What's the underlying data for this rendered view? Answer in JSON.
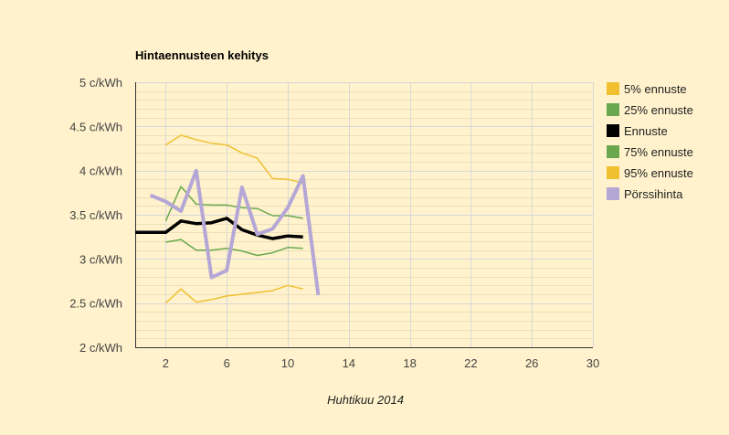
{
  "chart_data": {
    "type": "line",
    "title": "Hintaennusteen kehitys",
    "xlabel": "Huhtikuu 2014",
    "ylabel": "",
    "xlim": [
      0,
      30
    ],
    "ylim": [
      2,
      5
    ],
    "x_ticks": [
      2,
      6,
      10,
      14,
      18,
      22,
      26,
      30
    ],
    "y_ticks": [
      {
        "value": 2,
        "label": "2 c/kWh"
      },
      {
        "value": 2.5,
        "label": "2.5 c/kWh"
      },
      {
        "value": 3,
        "label": "3 c/kWh"
      },
      {
        "value": 3.5,
        "label": "3.5 c/kWh"
      },
      {
        "value": 4,
        "label": "4 c/kWh"
      },
      {
        "value": 4.5,
        "label": "4.5 c/kWh"
      },
      {
        "value": 5,
        "label": "5 c/kWh"
      }
    ],
    "grid": true,
    "legend_position": "right",
    "series": [
      {
        "name": "5% ennuste",
        "color": "#f0c030",
        "width": 1.5,
        "points": [
          [
            2,
            4.29
          ],
          [
            3,
            4.4
          ],
          [
            4,
            4.35
          ],
          [
            5,
            4.31
          ],
          [
            6,
            4.29
          ],
          [
            7,
            4.2
          ],
          [
            8,
            4.14
          ],
          [
            9,
            3.91
          ],
          [
            10,
            3.9
          ],
          [
            11,
            3.86
          ]
        ]
      },
      {
        "name": "25% ennuste",
        "color": "#6aa84f",
        "width": 1.5,
        "points": [
          [
            2,
            3.43
          ],
          [
            3,
            3.82
          ],
          [
            4,
            3.62
          ],
          [
            5,
            3.61
          ],
          [
            6,
            3.61
          ],
          [
            7,
            3.58
          ],
          [
            8,
            3.57
          ],
          [
            9,
            3.49
          ],
          [
            10,
            3.49
          ],
          [
            11,
            3.46
          ]
        ]
      },
      {
        "name": "Ennuste",
        "color": "#000000",
        "width": 3.5,
        "points": [
          [
            0,
            3.3
          ],
          [
            1,
            3.3
          ],
          [
            2,
            3.3
          ],
          [
            3,
            3.43
          ],
          [
            4,
            3.4
          ],
          [
            5,
            3.41
          ],
          [
            6,
            3.46
          ],
          [
            7,
            3.33
          ],
          [
            8,
            3.27
          ],
          [
            9,
            3.23
          ],
          [
            10,
            3.26
          ],
          [
            11,
            3.25
          ]
        ]
      },
      {
        "name": "75% ennuste",
        "color": "#6aa84f",
        "width": 1.5,
        "points": [
          [
            2,
            3.19
          ],
          [
            3,
            3.22
          ],
          [
            4,
            3.1
          ],
          [
            5,
            3.1
          ],
          [
            6,
            3.12
          ],
          [
            7,
            3.09
          ],
          [
            8,
            3.04
          ],
          [
            9,
            3.07
          ],
          [
            10,
            3.13
          ],
          [
            11,
            3.12
          ]
        ]
      },
      {
        "name": "95% ennuste",
        "color": "#f0c030",
        "width": 1.5,
        "points": [
          [
            2,
            2.5
          ],
          [
            3,
            2.66
          ],
          [
            4,
            2.51
          ],
          [
            5,
            2.54
          ],
          [
            6,
            2.58
          ],
          [
            7,
            2.6
          ],
          [
            8,
            2.62
          ],
          [
            9,
            2.64
          ],
          [
            10,
            2.7
          ],
          [
            11,
            2.66
          ]
        ]
      },
      {
        "name": "Pörssihinta",
        "color": "#b4a7d6",
        "width": 4,
        "points": [
          [
            1,
            3.72
          ],
          [
            2,
            3.65
          ],
          [
            3,
            3.54
          ],
          [
            4,
            4.0
          ],
          [
            5,
            2.79
          ],
          [
            6,
            2.87
          ],
          [
            7,
            3.81
          ],
          [
            8,
            3.28
          ],
          [
            9,
            3.34
          ],
          [
            10,
            3.58
          ],
          [
            11,
            3.94
          ],
          [
            12,
            2.59
          ]
        ]
      }
    ]
  }
}
